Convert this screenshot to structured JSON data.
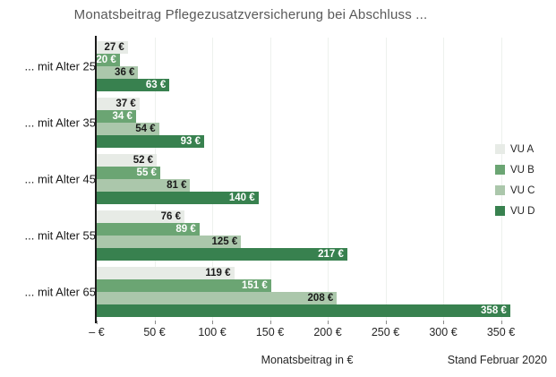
{
  "title": "Monatsbeitrag Pflegezusatzversicherung bei Abschluss ...",
  "footer": {
    "stand": "Stand Februar 2020"
  },
  "colors": {
    "title_text": "#595959",
    "axis_line": "#1a1a1a",
    "gridline": "#edf1ed",
    "vu_a": "#e7ebe6",
    "vu_b": "#6ba573",
    "vu_c": "#abc7ab",
    "vu_d": "#38814f",
    "label_dark": "#1a1a1a",
    "label_light": "#ffffff"
  },
  "chart_data": {
    "type": "bar",
    "orientation": "horizontal",
    "title": "Monatsbeitrag Pflegezusatzversicherung bei Abschluss ...",
    "categories": [
      "... mit Alter 25",
      "... mit Alter 35",
      "... mit Alter 45",
      "... mit Alter 55",
      "... mit Alter 65"
    ],
    "series": [
      {
        "name": "VU A",
        "color": "#e7ebe6",
        "label_color": "#1a1a1a",
        "values": [
          27,
          37,
          52,
          76,
          119
        ]
      },
      {
        "name": "VU B",
        "color": "#6ba573",
        "label_color": "#ffffff",
        "values": [
          20,
          34,
          55,
          89,
          151
        ]
      },
      {
        "name": "VU C",
        "color": "#abc7ab",
        "label_color": "#1a1a1a",
        "values": [
          36,
          54,
          81,
          125,
          208
        ]
      },
      {
        "name": "VU D",
        "color": "#38814f",
        "label_color": "#ffffff",
        "values": [
          63,
          93,
          140,
          217,
          358
        ]
      }
    ],
    "value_suffix": " €",
    "xlabel": "Monatsbeitrag in €",
    "x_ticks": [
      0,
      50,
      100,
      150,
      200,
      250,
      300,
      350
    ],
    "x_tick_labels": [
      "– €",
      "50 €",
      "100 €",
      "150 €",
      "200 €",
      "250 €",
      "300 €",
      "350 €"
    ],
    "xlim": [
      0,
      364
    ],
    "grid": true,
    "legend_position": "right",
    "legend_items": [
      "VU A",
      "VU B",
      "VU C",
      "VU D"
    ]
  }
}
